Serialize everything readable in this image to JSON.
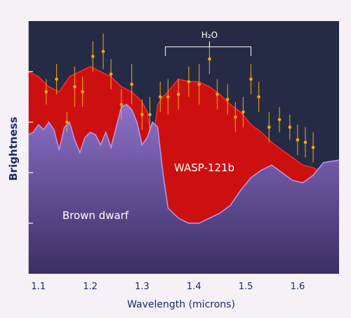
{
  "chart_data": {
    "type": "area",
    "xlabel": "Wavelength (microns)",
    "ylabel": "Brightness",
    "xlim": [
      1.08,
      1.68
    ],
    "ylim": [
      0,
      1
    ],
    "xticks": [
      1.1,
      1.2,
      1.3,
      1.4,
      1.5,
      1.6
    ],
    "xtick_labels": [
      "1.1",
      "1.2",
      "1.3",
      "1.4",
      "1.5",
      "1.6"
    ],
    "yticks": [
      0.2,
      0.4,
      0.6,
      0.8
    ],
    "grid": false,
    "colors": {
      "background": "#262b45",
      "axis_frame": "#f5f1f7",
      "axis_text": "#1c2870",
      "wasp": "#cc1010",
      "wasp_edge": "#ff2a2a",
      "brown": "#8b6bc4",
      "brown_edge": "#b69af0",
      "points": "#f0a818",
      "annotation": "#ffffff"
    },
    "series": [
      {
        "name": "WASP-121b",
        "x": [
          1.08,
          1.1,
          1.12,
          1.14,
          1.16,
          1.18,
          1.2,
          1.22,
          1.24,
          1.26,
          1.28,
          1.3,
          1.31,
          1.32,
          1.33,
          1.34,
          1.35,
          1.37,
          1.39,
          1.41,
          1.43,
          1.45,
          1.47,
          1.49,
          1.51,
          1.53,
          1.55,
          1.57,
          1.59,
          1.61,
          1.63,
          1.65,
          1.68
        ],
        "values": [
          0.8,
          0.78,
          0.74,
          0.72,
          0.78,
          0.8,
          0.82,
          0.8,
          0.78,
          0.74,
          0.72,
          0.68,
          0.64,
          0.5,
          0.67,
          0.7,
          0.72,
          0.77,
          0.76,
          0.76,
          0.74,
          0.71,
          0.67,
          0.64,
          0.59,
          0.56,
          0.52,
          0.49,
          0.46,
          0.43,
          0.42,
          0.4,
          0.38
        ]
      },
      {
        "name": "Brown dwarf",
        "x": [
          1.08,
          1.09,
          1.1,
          1.11,
          1.12,
          1.13,
          1.14,
          1.15,
          1.16,
          1.17,
          1.18,
          1.19,
          1.2,
          1.21,
          1.22,
          1.23,
          1.24,
          1.25,
          1.26,
          1.27,
          1.28,
          1.29,
          1.3,
          1.31,
          1.32,
          1.33,
          1.34,
          1.35,
          1.37,
          1.39,
          1.41,
          1.43,
          1.45,
          1.47,
          1.49,
          1.51,
          1.53,
          1.55,
          1.57,
          1.59,
          1.61,
          1.63,
          1.65,
          1.68
        ],
        "values": [
          0.55,
          0.56,
          0.59,
          0.57,
          0.6,
          0.57,
          0.49,
          0.58,
          0.6,
          0.53,
          0.48,
          0.54,
          0.56,
          0.55,
          0.51,
          0.56,
          0.5,
          0.58,
          0.66,
          0.67,
          0.65,
          0.6,
          0.51,
          0.54,
          0.6,
          0.58,
          0.4,
          0.26,
          0.22,
          0.2,
          0.2,
          0.22,
          0.24,
          0.27,
          0.33,
          0.38,
          0.41,
          0.43,
          0.4,
          0.37,
          0.36,
          0.39,
          0.44,
          0.45
        ]
      },
      {
        "name": "measurements",
        "type": "scatter",
        "x": [
          1.115,
          1.135,
          1.155,
          1.17,
          1.185,
          1.205,
          1.225,
          1.24,
          1.26,
          1.28,
          1.3,
          1.315,
          1.335,
          1.35,
          1.37,
          1.39,
          1.41,
          1.43,
          1.445,
          1.465,
          1.48,
          1.495,
          1.51,
          1.525,
          1.545,
          1.565,
          1.585,
          1.6,
          1.615,
          1.63
        ],
        "values": [
          0.72,
          0.77,
          0.6,
          0.74,
          0.72,
          0.86,
          0.88,
          0.79,
          0.67,
          0.75,
          0.63,
          0.63,
          0.7,
          0.7,
          0.71,
          0.76,
          0.75,
          0.85,
          0.71,
          0.69,
          0.62,
          0.64,
          0.77,
          0.7,
          0.58,
          0.61,
          0.58,
          0.53,
          0.52,
          0.5
        ],
        "errors": [
          0.05,
          0.06,
          0.04,
          0.08,
          0.06,
          0.06,
          0.07,
          0.06,
          0.06,
          0.08,
          0.06,
          0.07,
          0.06,
          0.07,
          0.06,
          0.06,
          0.08,
          0.06,
          0.06,
          0.06,
          0.06,
          0.06,
          0.06,
          0.06,
          0.06,
          0.05,
          0.05,
          0.06,
          0.06,
          0.06
        ]
      }
    ],
    "annotations": [
      {
        "text": "WASP-121b",
        "x": 1.42,
        "y": 0.42
      },
      {
        "text": "Brown dwarf",
        "x": 1.21,
        "y": 0.23
      },
      {
        "text": "H₂O",
        "x": 1.43,
        "y": 1.04,
        "bracket": [
          1.345,
          1.51
        ]
      }
    ]
  }
}
